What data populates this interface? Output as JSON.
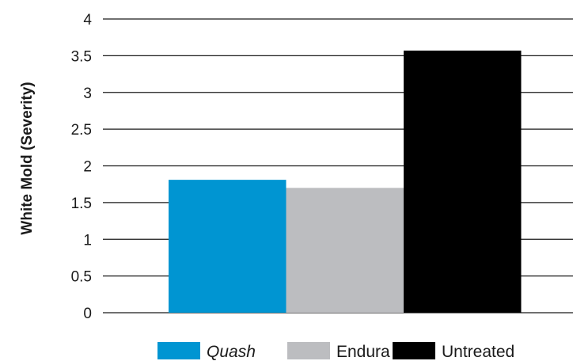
{
  "chart_data": {
    "type": "bar",
    "categories": [
      "Quash",
      "Endura",
      "Untreated"
    ],
    "values": [
      1.81,
      1.7,
      3.57
    ],
    "colors": [
      "#0095d2",
      "#bcbdc0",
      "#000000"
    ],
    "category_italic": [
      true,
      false,
      false
    ],
    "title": "",
    "xlabel": "",
    "ylabel": "White Mold (Severity)",
    "ylim": [
      0,
      4
    ],
    "yticks": [
      "0",
      "0.5",
      "1",
      "1.5",
      "2",
      "2.5",
      "3",
      "3.5",
      "4"
    ],
    "grid": true,
    "legend": {
      "placement": "bottom-center",
      "entries": [
        "Quash",
        "Endura",
        "Untreated"
      ]
    }
  }
}
